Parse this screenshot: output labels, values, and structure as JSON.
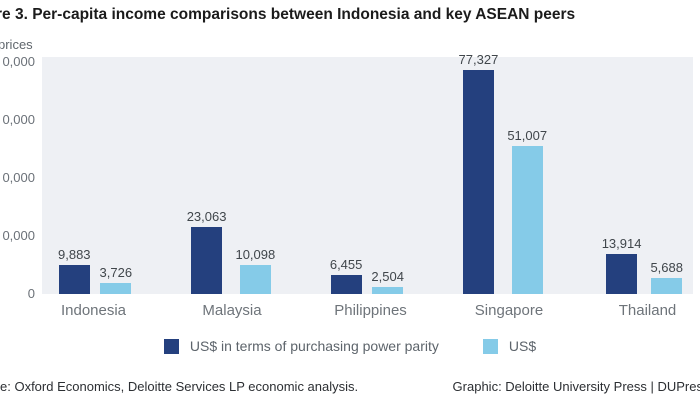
{
  "title": "re 3. Per-capita income comparisons between Indonesia and key ASEAN peers",
  "axis_unit_label": "prices",
  "colors": {
    "ppp_series": "#24407e",
    "usd_series": "#85cbe8",
    "panel_background": "#eef0f4"
  },
  "chart_data": {
    "type": "bar",
    "title": "re 3. Per-capita income comparisons between Indonesia and key ASEAN peers",
    "categories": [
      "Indonesia",
      "Malaysia",
      "Philippines",
      "Singapore",
      "Thailand"
    ],
    "series": [
      {
        "name": "US$ in terms of purchasing power parity",
        "color": "#24407e",
        "values": [
          9883,
          23063,
          6455,
          77327,
          13914
        ],
        "labels": [
          "9,883",
          "23,063",
          "6,455",
          "77,327",
          "13,914"
        ]
      },
      {
        "name": "US$",
        "color": "#85cbe8",
        "values": [
          3726,
          10098,
          2504,
          51007,
          5688
        ],
        "labels": [
          "3,726",
          "10,098",
          "2,504",
          "51,007",
          "5,688"
        ]
      }
    ],
    "ylabel_visible": "prices",
    "ylim": [
      0,
      80000
    ],
    "yticks": [
      {
        "value": 80000,
        "visible_label": "0,000"
      },
      {
        "value": 60000,
        "visible_label": "0,000"
      },
      {
        "value": 40000,
        "visible_label": "0,000"
      },
      {
        "value": 20000,
        "visible_label": "0,000"
      },
      {
        "value": 0,
        "visible_label": "0"
      }
    ],
    "grid": false,
    "legend_position": "bottom"
  },
  "footer": {
    "source": "e: Oxford Economics, Deloitte Services LP economic analysis.",
    "credit": "Graphic: Deloitte University Press  |  DUPres"
  }
}
